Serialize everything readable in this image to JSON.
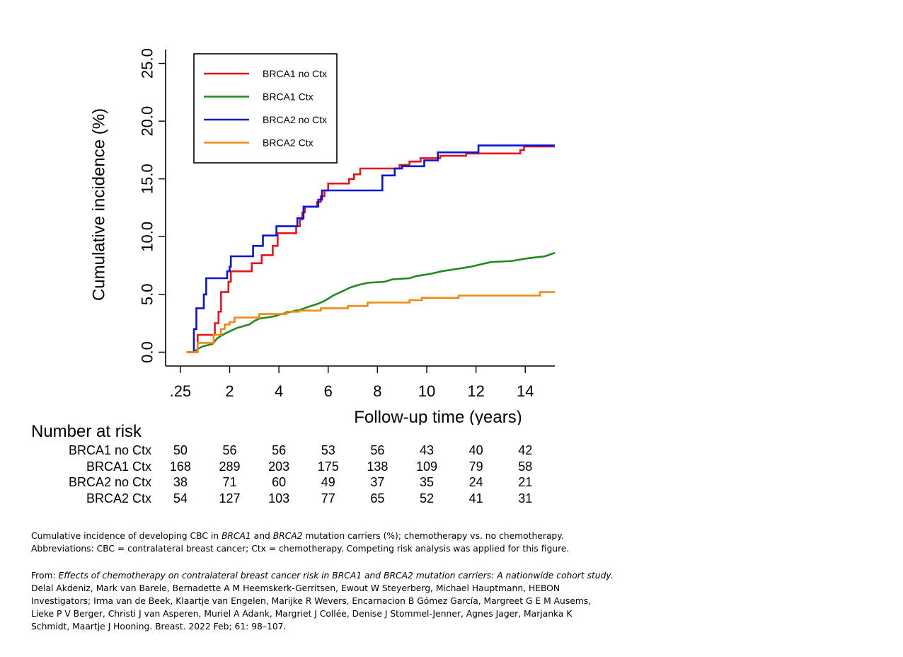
{
  "chart_data": {
    "type": "line",
    "xlabel": "Follow-up time (years)",
    "ylabel": "Cumulative incidence (%)",
    "xlim": [
      -0.6,
      15.2
    ],
    "ylim": [
      -1.2,
      26.2
    ],
    "x_ticks": [
      0,
      2,
      4,
      6,
      8,
      10,
      12,
      14
    ],
    "x_tick_labels": [
      ".25",
      "2",
      "4",
      "6",
      "8",
      "10",
      "12",
      "14"
    ],
    "y_ticks": [
      0,
      5,
      10,
      15,
      20,
      25
    ],
    "y_tick_labels": [
      "0.0",
      "5.0",
      "10.0",
      "15.0",
      "20.0",
      "25.0"
    ],
    "legend_position": "top-left",
    "grid": false,
    "series": [
      {
        "name": "BRCA1 no Ctx",
        "color": "#e8141b",
        "points": [
          [
            0.25,
            0
          ],
          [
            0.7,
            0
          ],
          [
            0.7,
            1.5
          ],
          [
            1.4,
            1.5
          ],
          [
            1.4,
            2.5
          ],
          [
            1.55,
            2.5
          ],
          [
            1.55,
            3.5
          ],
          [
            1.65,
            3.5
          ],
          [
            1.65,
            5.2
          ],
          [
            1.95,
            5.2
          ],
          [
            1.95,
            6.1
          ],
          [
            2.05,
            6.1
          ],
          [
            2.05,
            7.0
          ],
          [
            2.9,
            7.0
          ],
          [
            2.9,
            7.7
          ],
          [
            3.3,
            7.7
          ],
          [
            3.3,
            8.4
          ],
          [
            3.75,
            8.4
          ],
          [
            3.75,
            9.2
          ],
          [
            3.95,
            9.2
          ],
          [
            3.95,
            10.3
          ],
          [
            4.7,
            10.3
          ],
          [
            4.7,
            10.9
          ],
          [
            4.85,
            10.9
          ],
          [
            4.85,
            11.5
          ],
          [
            4.95,
            11.5
          ],
          [
            4.95,
            12.1
          ],
          [
            5.05,
            12.1
          ],
          [
            5.05,
            12.6
          ],
          [
            5.55,
            12.6
          ],
          [
            5.55,
            13.0
          ],
          [
            5.7,
            13.0
          ],
          [
            5.7,
            13.5
          ],
          [
            5.85,
            13.5
          ],
          [
            5.85,
            14.0
          ],
          [
            6.0,
            14.0
          ],
          [
            6.0,
            14.6
          ],
          [
            6.85,
            14.6
          ],
          [
            6.85,
            15.0
          ],
          [
            7.05,
            15.0
          ],
          [
            7.05,
            15.4
          ],
          [
            7.3,
            15.4
          ],
          [
            7.3,
            15.9
          ],
          [
            8.9,
            15.9
          ],
          [
            8.9,
            16.2
          ],
          [
            9.3,
            16.2
          ],
          [
            9.3,
            16.5
          ],
          [
            9.75,
            16.5
          ],
          [
            9.75,
            16.8
          ],
          [
            10.55,
            16.8
          ],
          [
            10.55,
            17.0
          ],
          [
            11.6,
            17.0
          ],
          [
            11.6,
            17.2
          ],
          [
            13.8,
            17.2
          ],
          [
            13.8,
            17.5
          ],
          [
            13.95,
            17.5
          ],
          [
            13.95,
            17.8
          ],
          [
            15.2,
            17.8
          ]
        ]
      },
      {
        "name": "BRCA1 Ctx",
        "color": "#1f8a1f",
        "points": [
          [
            0.6,
            0
          ],
          [
            0.65,
            0.2
          ],
          [
            0.9,
            0.5
          ],
          [
            1.3,
            0.7
          ],
          [
            1.5,
            1.2
          ],
          [
            1.8,
            1.6
          ],
          [
            2.1,
            1.9
          ],
          [
            2.3,
            2.1
          ],
          [
            2.8,
            2.4
          ],
          [
            3.0,
            2.7
          ],
          [
            3.2,
            2.9
          ],
          [
            3.5,
            3.0
          ],
          [
            3.8,
            3.1
          ],
          [
            4.1,
            3.3
          ],
          [
            4.5,
            3.5
          ],
          [
            4.9,
            3.7
          ],
          [
            5.3,
            4.0
          ],
          [
            5.6,
            4.2
          ],
          [
            5.9,
            4.5
          ],
          [
            6.2,
            4.9
          ],
          [
            6.6,
            5.3
          ],
          [
            6.9,
            5.6
          ],
          [
            7.2,
            5.8
          ],
          [
            7.6,
            6.0
          ],
          [
            8.3,
            6.1
          ],
          [
            8.6,
            6.3
          ],
          [
            9.3,
            6.4
          ],
          [
            9.6,
            6.6
          ],
          [
            10.2,
            6.8
          ],
          [
            10.6,
            7.0
          ],
          [
            11.2,
            7.2
          ],
          [
            11.8,
            7.4
          ],
          [
            12.2,
            7.6
          ],
          [
            12.6,
            7.8
          ],
          [
            13.5,
            7.9
          ],
          [
            14.0,
            8.1
          ],
          [
            14.8,
            8.3
          ],
          [
            15.2,
            8.6
          ]
        ]
      },
      {
        "name": "BRCA2 no Ctx",
        "color": "#0a14d6",
        "points": [
          [
            0.25,
            0
          ],
          [
            0.55,
            0
          ],
          [
            0.55,
            2.0
          ],
          [
            0.65,
            2.0
          ],
          [
            0.65,
            3.8
          ],
          [
            0.95,
            3.8
          ],
          [
            0.95,
            5.0
          ],
          [
            1.05,
            5.0
          ],
          [
            1.05,
            6.4
          ],
          [
            1.9,
            6.4
          ],
          [
            1.9,
            7.0
          ],
          [
            2.0,
            7.0
          ],
          [
            2.0,
            7.4
          ],
          [
            2.05,
            7.4
          ],
          [
            2.05,
            8.3
          ],
          [
            2.95,
            8.3
          ],
          [
            2.95,
            9.2
          ],
          [
            3.35,
            9.2
          ],
          [
            3.35,
            10.1
          ],
          [
            3.9,
            10.1
          ],
          [
            3.9,
            10.9
          ],
          [
            4.75,
            10.9
          ],
          [
            4.75,
            11.6
          ],
          [
            5.0,
            11.6
          ],
          [
            5.0,
            12.6
          ],
          [
            5.6,
            12.6
          ],
          [
            5.6,
            13.2
          ],
          [
            5.75,
            13.2
          ],
          [
            5.75,
            14.0
          ],
          [
            8.2,
            14.0
          ],
          [
            8.2,
            15.3
          ],
          [
            8.7,
            15.3
          ],
          [
            8.7,
            15.9
          ],
          [
            9.0,
            15.9
          ],
          [
            9.0,
            16.1
          ],
          [
            9.9,
            16.1
          ],
          [
            9.9,
            16.6
          ],
          [
            10.45,
            16.6
          ],
          [
            10.45,
            17.3
          ],
          [
            12.1,
            17.3
          ],
          [
            12.1,
            17.9
          ],
          [
            15.2,
            17.9
          ]
        ]
      },
      {
        "name": "BRCA2 Ctx",
        "color": "#f08a12",
        "points": [
          [
            0.25,
            0
          ],
          [
            0.7,
            0
          ],
          [
            0.7,
            0.8
          ],
          [
            1.35,
            0.8
          ],
          [
            1.35,
            1.5
          ],
          [
            1.65,
            1.5
          ],
          [
            1.65,
            2.0
          ],
          [
            1.8,
            2.0
          ],
          [
            1.8,
            2.4
          ],
          [
            2.0,
            2.4
          ],
          [
            2.0,
            2.6
          ],
          [
            2.2,
            2.6
          ],
          [
            2.2,
            3.0
          ],
          [
            3.2,
            3.0
          ],
          [
            3.2,
            3.3
          ],
          [
            4.3,
            3.3
          ],
          [
            4.3,
            3.5
          ],
          [
            4.8,
            3.5
          ],
          [
            4.8,
            3.6
          ],
          [
            5.7,
            3.6
          ],
          [
            5.7,
            3.8
          ],
          [
            6.8,
            3.8
          ],
          [
            6.8,
            4.0
          ],
          [
            7.6,
            4.0
          ],
          [
            7.6,
            4.3
          ],
          [
            9.3,
            4.3
          ],
          [
            9.3,
            4.5
          ],
          [
            9.8,
            4.5
          ],
          [
            9.8,
            4.7
          ],
          [
            11.3,
            4.7
          ],
          [
            11.3,
            4.9
          ],
          [
            14.6,
            4.9
          ],
          [
            14.6,
            5.2
          ],
          [
            15.2,
            5.2
          ]
        ]
      }
    ]
  },
  "risk_table": {
    "heading": "Number at risk",
    "rows": [
      {
        "label": "BRCA1 no Ctx",
        "values": [
          "50",
          "56",
          "56",
          "53",
          "56",
          "43",
          "40",
          "42"
        ]
      },
      {
        "label": "BRCA1 Ctx",
        "values": [
          "168",
          "289",
          "203",
          "175",
          "138",
          "109",
          "79",
          "58"
        ]
      },
      {
        "label": "BRCA2 no Ctx",
        "values": [
          "38",
          "71",
          "60",
          "49",
          "37",
          "35",
          "24",
          "21"
        ]
      },
      {
        "label": "BRCA2 Ctx",
        "values": [
          "54",
          "127",
          "103",
          "77",
          "65",
          "52",
          "41",
          "31"
        ]
      }
    ]
  },
  "caption": {
    "line1_a": "Cumulative incidence of developing CBC in ",
    "line1_b": "BRCA1",
    "line1_c": " and ",
    "line1_d": "BRCA2",
    "line1_e": " mutation carriers (%); chemotherapy vs. no chemotherapy.",
    "line2": "Abbreviations: CBC = contralateral breast cancer; Ctx = chemotherapy. Competing risk analysis was applied for this figure."
  },
  "source": {
    "prefix": "From: ",
    "title": "Effects of chemotherapy on contralateral breast cancer risk in BRCA1 and BRCA2 mutation carriers: A nationwide cohort study.",
    "line2": "Delal Akdeniz, Mark van Barele, Bernadette A M Heemskerk-Gerritsen, Ewout W Steyerberg, Michael Hauptmann, HEBON",
    "line3": "Investigators; Irma van de Beek, Klaartje van Engelen, Marijke R Wevers, Encarnacion B Gómez García, Margreet G E M Ausems,",
    "line4": "Lieke P V Berger, Christi J van Asperen, Muriel A Adank, Margriet J Collée, Denise J Stommel-Jenner, Agnes Jager, Marjanka K",
    "line5": "Schmidt, Maartje J Hooning. Breast. 2022 Feb; 61: 98–107."
  }
}
